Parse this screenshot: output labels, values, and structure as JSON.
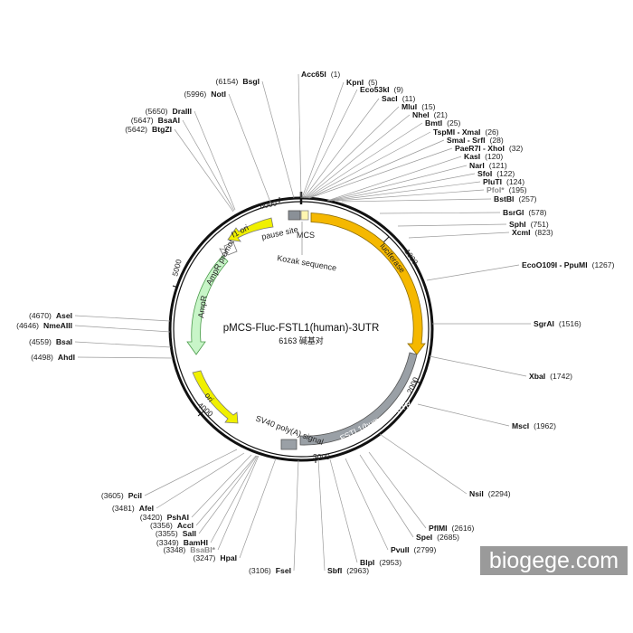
{
  "plasmid": {
    "name": "pMCS-Fluc-FSTL1(human)-3UTR",
    "size_label": "6163 碱基对"
  },
  "watermark": "biogege.com",
  "ticks": [
    "1000",
    "2000",
    "3000",
    "4000",
    "5000",
    "6000"
  ],
  "features": {
    "luciferase": "luciferase",
    "fstl1": "FSTL1(human)-3UTR",
    "sv40": "SV40 poly(A) signal",
    "ori": "ori",
    "ampr": "AmpR",
    "ampr_promoter": "AmpR promoter",
    "f1_ori": "f1 ori",
    "pause_site": "pause site",
    "mcs": "MCS",
    "kozak": "Kozak sequence"
  },
  "sites": [
    {
      "name": "Acc65I",
      "pos": "(1)"
    },
    {
      "name": "KpnI",
      "pos": "(5)"
    },
    {
      "name": "Eco53kI",
      "pos": "(9)"
    },
    {
      "name": "SacI",
      "pos": "(11)"
    },
    {
      "name": "MluI",
      "pos": "(15)"
    },
    {
      "name": "NheI",
      "pos": "(21)"
    },
    {
      "name": "BmtI",
      "pos": "(25)"
    },
    {
      "name": "TspMI - XmaI",
      "pos": "(26)"
    },
    {
      "name": "SmaI - SrfI",
      "pos": "(28)"
    },
    {
      "name": "PaeR7I - XhoI",
      "pos": "(32)"
    },
    {
      "name": "KasI",
      "pos": "(120)"
    },
    {
      "name": "NarI",
      "pos": "(121)"
    },
    {
      "name": "SfoI",
      "pos": "(122)"
    },
    {
      "name": "PluTI",
      "pos": "(124)"
    },
    {
      "name": "PfoI*",
      "pos": "(195)"
    },
    {
      "name": "BstBI",
      "pos": "(257)"
    },
    {
      "name": "BsrGI",
      "pos": "(578)"
    },
    {
      "name": "SphI",
      "pos": "(751)"
    },
    {
      "name": "XcmI",
      "pos": "(823)"
    },
    {
      "name": "EcoO109I - PpuMI",
      "pos": "(1267)"
    },
    {
      "name": "SgrAI",
      "pos": "(1516)"
    },
    {
      "name": "XbaI",
      "pos": "(1742)"
    },
    {
      "name": "MscI",
      "pos": "(1962)"
    },
    {
      "name": "NsiI",
      "pos": "(2294)"
    },
    {
      "name": "PflMI",
      "pos": "(2616)"
    },
    {
      "name": "SpeI",
      "pos": "(2685)"
    },
    {
      "name": "PvuII",
      "pos": "(2799)"
    },
    {
      "name": "BlpI",
      "pos": "(2953)"
    },
    {
      "name": "SbfI",
      "pos": "(2963)"
    },
    {
      "name": "FseI",
      "pos": "(3106)"
    },
    {
      "name": "HpaI",
      "pos": "(3247)"
    },
    {
      "name": "BsaBI*",
      "pos": "(3348)"
    },
    {
      "name": "BamHI",
      "pos": "(3349)"
    },
    {
      "name": "SalI",
      "pos": "(3355)"
    },
    {
      "name": "AccI",
      "pos": "(3356)"
    },
    {
      "name": "PshAI",
      "pos": "(3420)"
    },
    {
      "name": "AfeI",
      "pos": "(3481)"
    },
    {
      "name": "PciI",
      "pos": "(3605)"
    },
    {
      "name": "AhdI",
      "pos": "(4498)"
    },
    {
      "name": "BsaI",
      "pos": "(4559)"
    },
    {
      "name": "NmeAIII",
      "pos": "(4646)"
    },
    {
      "name": "AseI",
      "pos": "(4670)"
    },
    {
      "name": "BtgZI",
      "pos": "(5642)"
    },
    {
      "name": "BsaAI",
      "pos": "(5647)"
    },
    {
      "name": "DraIII",
      "pos": "(5650)"
    },
    {
      "name": "NotI",
      "pos": "(5996)"
    },
    {
      "name": "BsgI",
      "pos": "(6154)"
    }
  ]
}
